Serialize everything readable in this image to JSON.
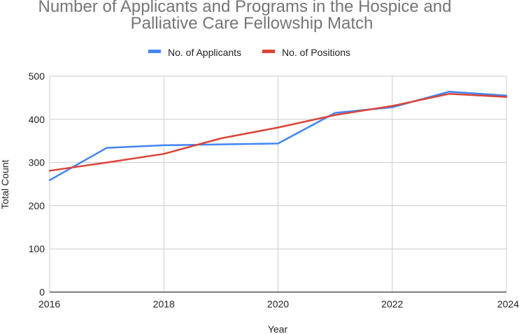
{
  "chart_data": {
    "type": "line",
    "title": "Number of Applicants and Programs in the Hospice and Palliative Care Fellowship Match",
    "title_lines": [
      "Number of Applicants and Programs in the Hospice and",
      "Palliative Care Fellowship Match"
    ],
    "xlabel": "Year",
    "ylabel": "Total Count",
    "xlim": [
      2016,
      2024
    ],
    "ylim": [
      0,
      500
    ],
    "x_ticks": [
      "2016",
      "2018",
      "2020",
      "2022",
      "2024"
    ],
    "y_ticks": [
      "0",
      "100",
      "200",
      "300",
      "400",
      "500"
    ],
    "grid": true,
    "legend_position": "top",
    "x": [
      2016,
      2017,
      2018,
      2019,
      2020,
      2021,
      2022,
      2023,
      2024
    ],
    "series": [
      {
        "name": "No. of Applicants",
        "color": "#4285F4",
        "values": [
          259,
          334,
          340,
          342,
          344,
          415,
          428,
          464,
          455
        ]
      },
      {
        "name": "No. of Positions",
        "color": "#DB4437",
        "values": [
          281,
          300,
          320,
          356,
          381,
          410,
          431,
          459,
          452
        ]
      }
    ]
  }
}
